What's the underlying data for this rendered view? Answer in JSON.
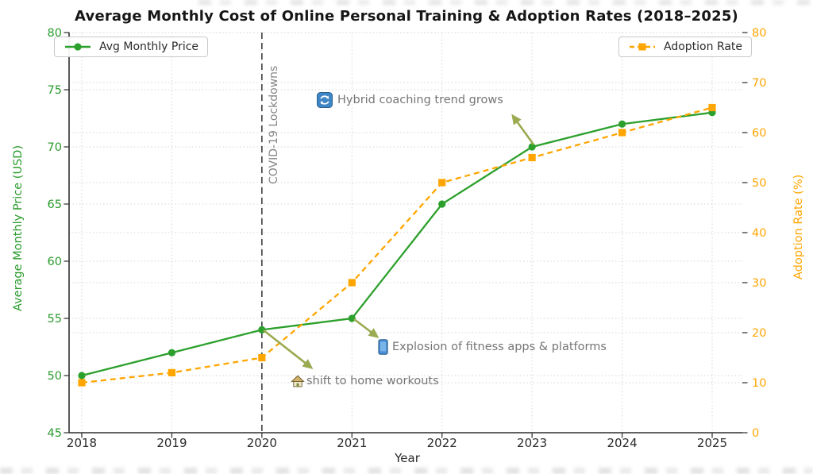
{
  "title": "Average Monthly Cost of Online Personal Training & Adoption Rates (2018–2025)",
  "colors": {
    "price": "#2ca02c",
    "adoption": "#ffa500",
    "arrow": "#9aaa50",
    "grid": "#d7d7d7",
    "vline": "#3d3d3d",
    "vline_label": "#868686",
    "annotation_text": "#757575",
    "x_tick_label": "#2b2b2b",
    "left_tick_label": "#2a9b2c",
    "right_tick_label": "#ffa500",
    "spine": "#2f2f2f"
  },
  "chart_data": {
    "type": "line",
    "title": "Average Monthly Cost of Online Personal Training & Adoption Rates (2018–2025)",
    "x": [
      2018,
      2019,
      2020,
      2021,
      2022,
      2023,
      2024,
      2025
    ],
    "series": [
      {
        "name": "Avg Monthly Price",
        "axis": "left",
        "values": [
          50,
          52,
          54,
          55,
          65,
          70,
          72,
          73
        ],
        "color": "#2ca02c",
        "style": "solid",
        "marker": "circle"
      },
      {
        "name": "Adoption Rate",
        "axis": "right",
        "values": [
          10,
          12,
          15,
          30,
          50,
          55,
          60,
          65
        ],
        "color": "#ffa500",
        "style": "dashed",
        "marker": "square"
      }
    ],
    "xlabel": "Year",
    "ylabel_left": "Average Monthly Price (USD)",
    "ylabel_right": "Adoption Rate (%)",
    "ylim_left": [
      45,
      80
    ],
    "ylim_right": [
      0,
      80
    ],
    "yticks_left": [
      45,
      50,
      55,
      60,
      65,
      70,
      75,
      80
    ],
    "yticks_right": [
      0,
      10,
      20,
      30,
      40,
      50,
      60,
      70,
      80
    ],
    "grid": true,
    "legend_positions": "upper left and upper right",
    "vline": {
      "x": 2020,
      "label": "COVID-19 Lockdowns"
    },
    "annotations": [
      {
        "icon": "cycle-icon",
        "text": "Hybrid coaching trend grows",
        "arrow": {
          "from": [
            672,
            182
          ],
          "to": [
            646,
            146
          ]
        }
      },
      {
        "icon": "phone-icon",
        "text": "Explosion of fitness apps & platforms",
        "arrow": {
          "from": [
            446,
            402
          ],
          "to": [
            475,
            424
          ]
        }
      },
      {
        "icon": "house-icon",
        "text": "shift to home workouts",
        "arrow": {
          "from": [
            332,
            416
          ],
          "to": [
            392,
            463
          ]
        }
      }
    ]
  }
}
